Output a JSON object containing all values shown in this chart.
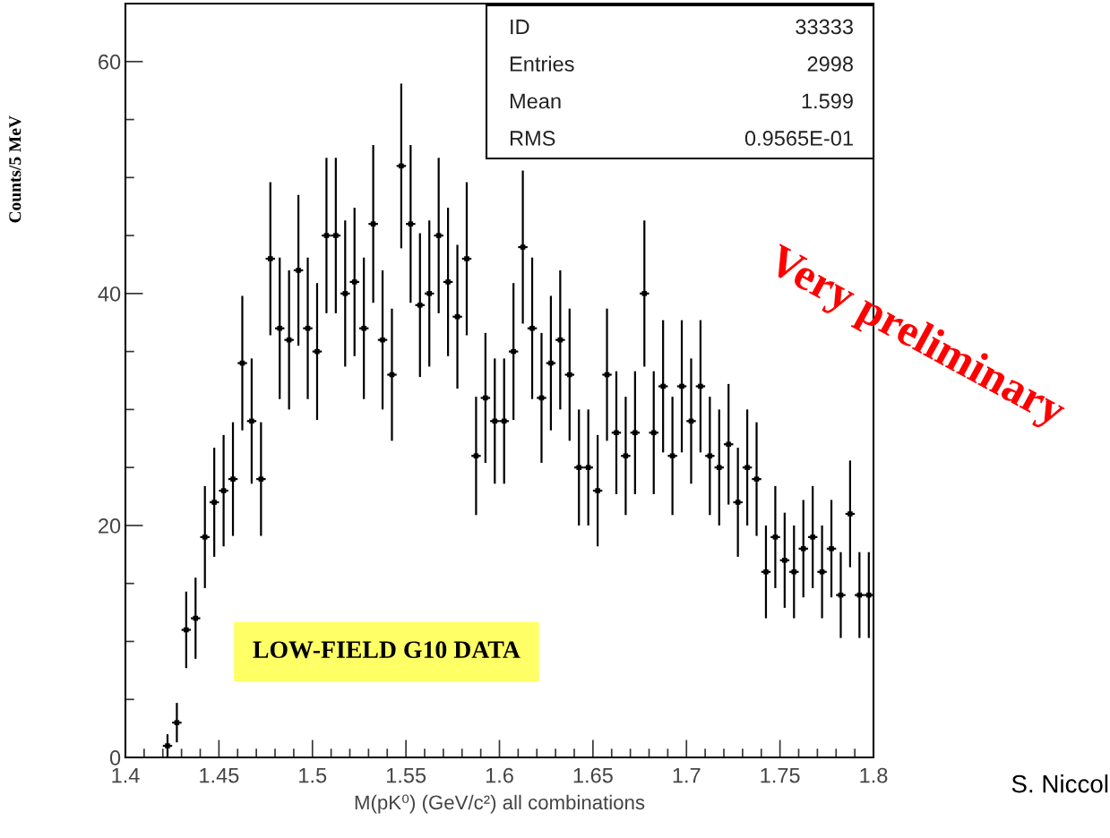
{
  "chart_data": {
    "type": "scatter",
    "xlabel": "M(pK⁰) (GeV/c²) all combinations",
    "ylabel": "Counts/5 MeV",
    "x": [
      1.4225,
      1.4275,
      1.4325,
      1.4375,
      1.4425,
      1.4475,
      1.4525,
      1.4575,
      1.4625,
      1.4675,
      1.4725,
      1.4775,
      1.4825,
      1.4875,
      1.4925,
      1.4975,
      1.5025,
      1.5075,
      1.5125,
      1.5175,
      1.5225,
      1.5275,
      1.5325,
      1.5375,
      1.5425,
      1.5475,
      1.5525,
      1.5575,
      1.5625,
      1.5675,
      1.5725,
      1.5775,
      1.5825,
      1.5875,
      1.5925,
      1.5975,
      1.6025,
      1.6075,
      1.6125,
      1.6175,
      1.6225,
      1.6275,
      1.6325,
      1.6375,
      1.6425,
      1.6475,
      1.6525,
      1.6575,
      1.6625,
      1.6675,
      1.6725,
      1.6775,
      1.6825,
      1.6875,
      1.6925,
      1.6975,
      1.7025,
      1.7075,
      1.7125,
      1.7175,
      1.7225,
      1.7275,
      1.7325,
      1.7375,
      1.7425,
      1.7475,
      1.7525,
      1.7575,
      1.7625,
      1.7675,
      1.7725,
      1.7775,
      1.7825,
      1.7875,
      1.7925,
      1.7975
    ],
    "series": [
      {
        "color": "#000000",
        "values": [
          1,
          3,
          11,
          12,
          19,
          22,
          23,
          24,
          34,
          29,
          24,
          43,
          37,
          36,
          42,
          37,
          35,
          45,
          45,
          40,
          41,
          37,
          46,
          36,
          33,
          51,
          46,
          39,
          40,
          45,
          41,
          38,
          43,
          26,
          31,
          29,
          29,
          35,
          44,
          37,
          31,
          34,
          36,
          33,
          25,
          25,
          23,
          33,
          28,
          26,
          28,
          40,
          28,
          32,
          26,
          32,
          29,
          32,
          26,
          25,
          27,
          22,
          25,
          24,
          16,
          19,
          17,
          16,
          18,
          19,
          16,
          18,
          14,
          21,
          14,
          14
        ],
        "errors": [
          1,
          1.7,
          3.3,
          3.5,
          4.4,
          4.7,
          4.8,
          4.9,
          5.8,
          5.4,
          4.9,
          6.6,
          6.1,
          6,
          6.5,
          6.1,
          5.9,
          6.7,
          6.7,
          6.3,
          6.4,
          6.1,
          6.8,
          6,
          5.7,
          7.1,
          6.8,
          6.2,
          6.3,
          6.7,
          6.4,
          6.2,
          6.6,
          5.1,
          5.6,
          5.4,
          5.4,
          5.9,
          6.6,
          6.1,
          5.6,
          5.8,
          6,
          5.7,
          5,
          5,
          4.8,
          5.7,
          5.3,
          5.1,
          5.3,
          6.3,
          5.3,
          5.7,
          5.1,
          5.7,
          5.4,
          5.7,
          5.1,
          5,
          5.2,
          4.7,
          5,
          4.9,
          4,
          4.4,
          4.1,
          4,
          4.2,
          4.4,
          4,
          4.2,
          3.7,
          4.6,
          3.7,
          3.7
        ],
        "xerrors": [
          0.0025,
          0.0025,
          0.0025,
          0.0025,
          0.0025,
          0.0025,
          0.0025,
          0.0025,
          0.0025,
          0.0025,
          0.0025,
          0.0025,
          0.0025,
          0.0025,
          0.0025,
          0.0025,
          0.0025,
          0.0025,
          0.0025,
          0.0025,
          0.0025,
          0.0025,
          0.0025,
          0.0025,
          0.0025,
          0.0025,
          0.0025,
          0.0025,
          0.0025,
          0.0025,
          0.0025,
          0.0025,
          0.0025,
          0.0025,
          0.0025,
          0.0025,
          0.0025,
          0.0025,
          0.0025,
          0.0025,
          0.0025,
          0.0025,
          0.0025,
          0.0025,
          0.0025,
          0.0025,
          0.0025,
          0.0025,
          0.0025,
          0.0025,
          0.0025,
          0.0025,
          0.0025,
          0.0025,
          0.0025,
          0.0025,
          0.0025,
          0.0025,
          0.0025,
          0.0025,
          0.0025,
          0.0025,
          0.0025,
          0.0025,
          0.0025,
          0.0025,
          0.0025,
          0.0025,
          0.0025,
          0.0025,
          0.0025,
          0.0025,
          0.0025,
          0.0025,
          0.0025,
          0.0025
        ]
      }
    ],
    "xlim": [
      1.4,
      1.8
    ],
    "xticks": [
      {
        "value": 1.4,
        "label": "1.4"
      },
      1.45,
      {
        "value": 1.5,
        "label": "1.5"
      },
      1.55,
      {
        "value": 1.6,
        "label": "1.6"
      },
      1.65,
      {
        "value": 1.7,
        "label": "1.7"
      },
      1.75,
      {
        "value": 1.8,
        "label": "1.8"
      }
    ],
    "ylim": [
      0,
      65
    ],
    "yticks": [
      0,
      20,
      40,
      60
    ],
    "grid": false,
    "annotations": [
      "ID",
      "33333",
      "Entries",
      "2998",
      "Mean",
      "1.599",
      "RMS",
      "0.9565E-01",
      "LOW-FIELD G10 DATA",
      "Very preliminary",
      "S. Niccol"
    ]
  }
}
